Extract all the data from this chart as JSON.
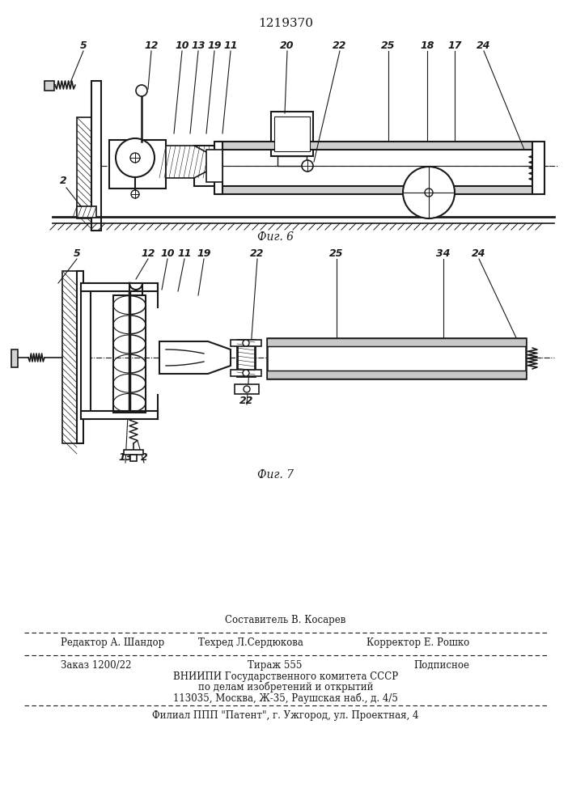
{
  "patent_number": "1219370",
  "fig6_label": "Фиг. 6",
  "fig7_label": "Фиг. 7",
  "bg_color": "#ffffff",
  "line_color": "#1a1a1a",
  "footer": {
    "composer": "Составитель В. Косарев",
    "editor": "Редактор А. Шандор",
    "techred": "Техред Л.Сердюкова",
    "corrector": "Корректор Е. Рошко",
    "order": "Заказ 1200/22",
    "tirazh": "Тираж 555",
    "podpisnoe": "Подписное",
    "vniiipi_line1": "ВНИИПИ Государственного комитета СССР",
    "vniiipi_line2": "по делам изобретений и открытий",
    "vniiipi_line3": "113035, Москва, Ж-35, Раушская наб., д. 4/5",
    "filial": "Филиал ППП \"Патент\", г. Ужгород, ул. Проектная, 4"
  }
}
